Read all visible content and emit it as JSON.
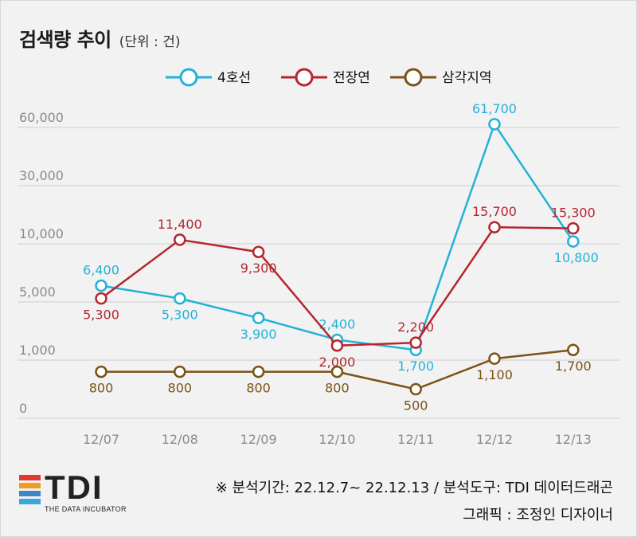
{
  "header": {
    "title": "검색량 추이",
    "unit": "(단위 : 건)"
  },
  "colors": {
    "4호선": "#22b2d6",
    "전장연": "#b5262e",
    "삼각지역": "#7a5316",
    "grid": "#cfcfcf",
    "axis_text": "#8a8a8a"
  },
  "chart_data": {
    "type": "line",
    "categories": [
      "12/07",
      "12/08",
      "12/09",
      "12/10",
      "12/11",
      "12/12",
      "12/13"
    ],
    "y_ticks": [
      "0",
      "1,000",
      "5,000",
      "10,000",
      "30,000",
      "60,000"
    ],
    "y_tick_values": [
      0,
      1000,
      5000,
      10000,
      30000,
      60000
    ],
    "y_scale": "non-linear (tick positions evenly spaced)",
    "grid": "horizontal",
    "legend_position": "top-center",
    "series": [
      {
        "name": "4호선",
        "values": [
          6400,
          5300,
          3900,
          2400,
          1700,
          61700,
          10800
        ],
        "labels": [
          "6,400",
          "5,300",
          "3,900",
          "2,400",
          "1,700",
          "61,700",
          "10,800"
        ]
      },
      {
        "name": "전장연",
        "values": [
          5300,
          11400,
          9300,
          2000,
          2200,
          15700,
          15300
        ],
        "labels": [
          "5,300",
          "11,400",
          "9,300",
          "2,000",
          "2,200",
          "15,700",
          "15,300"
        ]
      },
      {
        "name": "삼각지역",
        "values": [
          800,
          800,
          800,
          800,
          500,
          1100,
          1700
        ],
        "labels": [
          "800",
          "800",
          "800",
          "800",
          "500",
          "1,100",
          "1,700"
        ]
      }
    ]
  },
  "footer": {
    "note": "※ 분석기간: 22.12.7~ 22.12.13 / 분석도구: TDI 데이터드래곤",
    "credit": "그래픽 : 조정인 디자이너"
  },
  "logo": {
    "text": "TDI",
    "subtitle": "THE DATA INCUBATOR",
    "bar_colors": [
      "#e23a2e",
      "#f39a1f",
      "#3f86c6",
      "#3aa7d8"
    ]
  }
}
